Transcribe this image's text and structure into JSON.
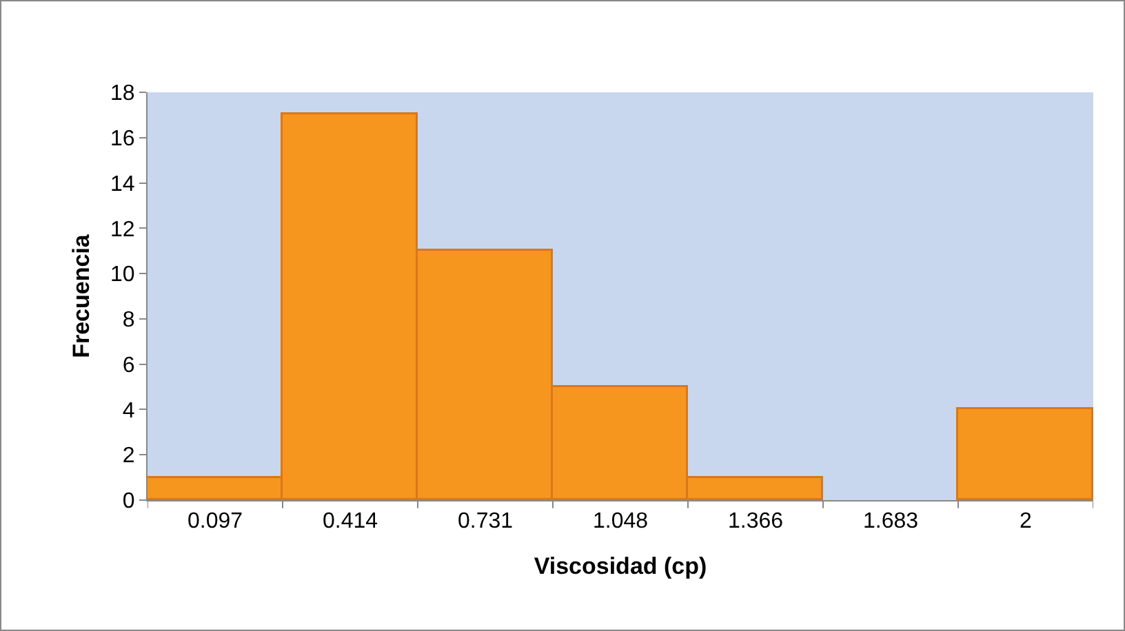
{
  "chart_data": {
    "type": "bar",
    "xlabel": "Viscosidad (cp)",
    "ylabel": "Frecuencia",
    "categories": [
      "0.097",
      "0.414",
      "0.731",
      "1.048",
      "1.366",
      "1.683",
      "2"
    ],
    "values": [
      1,
      17,
      11,
      5,
      1,
      0,
      4
    ],
    "color": "#f7961e",
    "ylim": [
      0,
      18
    ],
    "yticks": [
      0,
      2,
      4,
      6,
      8,
      10,
      12,
      14,
      16,
      18
    ],
    "grid": false,
    "legend": false
  }
}
